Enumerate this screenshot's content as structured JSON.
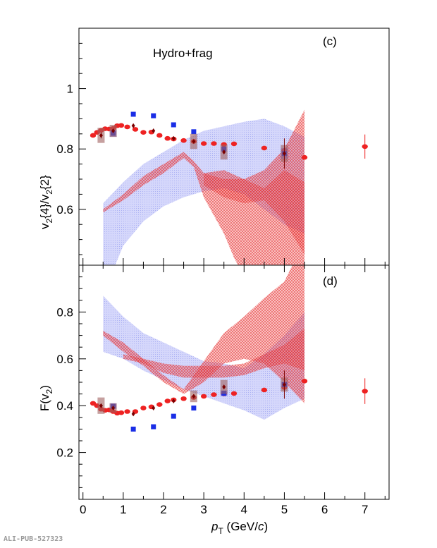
{
  "watermark": "ALI-PUB-527323",
  "colors": {
    "red": "#ee2222",
    "blue": "#1a2ee6",
    "dark": "#7a0000",
    "red_band": "#ee4444",
    "blue_band": "#6670ee",
    "box": "#a0605f"
  },
  "chart_data": [
    {
      "type": "scatter",
      "panel_label": "(c)",
      "annotation": "Hydro+frag",
      "title": "",
      "xlabel": "",
      "ylabel": "v2{4}/v2{2}",
      "ylabel_parts": {
        "v": "v",
        "sub": "2",
        "a": "{4}/v",
        "sub2": "2",
        "b": "{2}"
      },
      "xlim": [
        -0.1,
        7.6
      ],
      "ylim": [
        0.415,
        1.2
      ],
      "yticks": [
        0.6,
        0.8,
        1
      ],
      "ytick_labels": [
        "0.6",
        "0.8",
        "1"
      ],
      "series": [
        {
          "kind": "red_points",
          "x": [
            0.25,
            0.35,
            0.45,
            0.55,
            0.65,
            0.75,
            0.85,
            0.95,
            1.1,
            1.3,
            1.5,
            1.7,
            1.9,
            2.1,
            2.25,
            2.5,
            2.75,
            3.0,
            3.25,
            3.5,
            3.75,
            4.5,
            5.0,
            5.5,
            7.0
          ],
          "values": [
            0.845,
            0.855,
            0.862,
            0.867,
            0.866,
            0.868,
            0.877,
            0.878,
            0.873,
            0.865,
            0.855,
            0.856,
            0.845,
            0.835,
            0.833,
            0.828,
            0.825,
            0.818,
            0.818,
            0.815,
            0.817,
            0.803,
            0.795,
            0.772,
            0.808
          ],
          "err": [
            0,
            0,
            0,
            0,
            0,
            0,
            0,
            0,
            0,
            0,
            0,
            0,
            0,
            0,
            0,
            0,
            0,
            0,
            0,
            0,
            0,
            0,
            0,
            0,
            0.04
          ]
        },
        {
          "kind": "blue_squares",
          "x": [
            0.75,
            1.25,
            1.75,
            2.25,
            2.75,
            3.5,
            5.0
          ],
          "values": [
            0.852,
            0.915,
            0.91,
            0.88,
            0.857,
            0.8,
            0.785
          ],
          "box": [
            0.012,
            0,
            0,
            0,
            0,
            0,
            0.018
          ]
        },
        {
          "kind": "dark_diamonds",
          "x": [
            0.45,
            0.75,
            1.25,
            1.75,
            2.25,
            2.75,
            3.5,
            5.0
          ],
          "values": [
            0.845,
            0.86,
            0.877,
            0.86,
            0.835,
            0.825,
            0.79,
            0.785
          ],
          "box": [
            0.025,
            0.02,
            0,
            0,
            0,
            0.025,
            0.025,
            0.028
          ],
          "err": [
            0.01,
            0,
            0,
            0,
            0,
            0,
            0,
            0.05
          ]
        }
      ],
      "bands": [
        {
          "kind": "blue",
          "upper": [
            [
              0.5,
              0.62
            ],
            [
              1.0,
              0.69
            ],
            [
              1.5,
              0.75
            ],
            [
              2.0,
              0.79
            ],
            [
              2.5,
              0.83
            ],
            [
              3.0,
              0.86
            ],
            [
              3.5,
              0.875
            ],
            [
              4.0,
              0.89
            ],
            [
              4.5,
              0.9
            ],
            [
              5.0,
              0.875
            ],
            [
              5.5,
              0.84
            ]
          ],
          "lower": [
            [
              0.5,
              0.415
            ],
            [
              0.8,
              0.415
            ],
            [
              1.0,
              0.48
            ],
            [
              1.5,
              0.56
            ],
            [
              2.0,
              0.61
            ],
            [
              2.5,
              0.64
            ],
            [
              3.0,
              0.66
            ],
            [
              3.5,
              0.67
            ],
            [
              4.0,
              0.65
            ],
            [
              4.5,
              0.6
            ],
            [
              5.0,
              0.55
            ],
            [
              5.5,
              0.52
            ]
          ]
        },
        {
          "kind": "red",
          "upper": [
            [
              0.5,
              0.6
            ],
            [
              1.0,
              0.65
            ],
            [
              1.5,
              0.71
            ],
            [
              2.0,
              0.75
            ],
            [
              2.5,
              0.79
            ],
            [
              2.75,
              0.76
            ],
            [
              3.0,
              0.72
            ],
            [
              3.5,
              0.7
            ],
            [
              4.0,
              0.7
            ],
            [
              4.5,
              0.73
            ],
            [
              5.0,
              0.8
            ],
            [
              5.5,
              0.93
            ]
          ],
          "lower": [
            [
              0.5,
              0.59
            ],
            [
              1.0,
              0.63
            ],
            [
              1.5,
              0.68
            ],
            [
              2.0,
              0.72
            ],
            [
              2.5,
              0.77
            ],
            [
              2.75,
              0.74
            ],
            [
              3.0,
              0.64
            ],
            [
              3.5,
              0.52
            ],
            [
              3.75,
              0.44
            ],
            [
              3.85,
              0.415
            ],
            [
              5.5,
              0.415
            ]
          ]
        },
        {
          "kind": "red",
          "upper": [
            [
              3.0,
              0.72
            ],
            [
              3.5,
              0.73
            ],
            [
              4.0,
              0.7
            ],
            [
              4.5,
              0.67
            ],
            [
              5.0,
              0.73
            ],
            [
              5.5,
              0.69
            ]
          ],
          "lower": [
            [
              3.0,
              0.68
            ],
            [
              3.5,
              0.64
            ],
            [
              4.0,
              0.62
            ],
            [
              4.5,
              0.63
            ],
            [
              5.0,
              0.56
            ],
            [
              5.5,
              0.45
            ]
          ]
        }
      ]
    },
    {
      "type": "scatter",
      "panel_label": "(d)",
      "title": "",
      "xlabel": "pT (GeV/c)",
      "xlabel_parts": {
        "p": "p",
        "sub": "T",
        "a": " (GeV/",
        "c": "c",
        "b": ")"
      },
      "ylabel": "F(v2)",
      "ylabel_parts": {
        "a": "F(v",
        "sub": "2",
        "b": ")"
      },
      "xlim": [
        -0.1,
        7.6
      ],
      "ylim": [
        0.0,
        1.0
      ],
      "xticks": [
        0,
        1,
        2,
        3,
        4,
        5,
        6,
        7
      ],
      "xtick_labels": [
        "0",
        "1",
        "2",
        "3",
        "4",
        "5",
        "6",
        "7"
      ],
      "yticks": [
        0.2,
        0.4,
        0.6,
        0.8
      ],
      "ytick_labels": [
        "0.2",
        "0.4",
        "0.6",
        "0.8"
      ],
      "series": [
        {
          "kind": "red_points",
          "x": [
            0.25,
            0.35,
            0.45,
            0.55,
            0.65,
            0.75,
            0.85,
            0.95,
            1.1,
            1.3,
            1.5,
            1.7,
            1.9,
            2.1,
            2.25,
            2.5,
            2.75,
            3.0,
            3.25,
            3.5,
            3.75,
            4.5,
            5.0,
            5.5,
            7.0
          ],
          "values": [
            0.41,
            0.4,
            0.385,
            0.38,
            0.382,
            0.375,
            0.368,
            0.37,
            0.375,
            0.375,
            0.39,
            0.395,
            0.405,
            0.42,
            0.425,
            0.43,
            0.435,
            0.44,
            0.447,
            0.45,
            0.452,
            0.467,
            0.478,
            0.505,
            0.462
          ],
          "err": [
            0,
            0,
            0,
            0,
            0,
            0,
            0,
            0,
            0,
            0,
            0,
            0,
            0,
            0,
            0,
            0,
            0,
            0,
            0,
            0,
            0,
            0,
            0,
            0,
            0.055
          ]
        },
        {
          "kind": "blue_squares",
          "x": [
            0.75,
            1.25,
            1.75,
            2.25,
            2.75,
            3.5,
            5.0
          ],
          "values": [
            0.398,
            0.3,
            0.31,
            0.355,
            0.39,
            0.453,
            0.49
          ],
          "box": [
            0.012,
            0,
            0,
            0,
            0,
            0.012,
            0.012
          ]
        },
        {
          "kind": "dark_diamonds",
          "x": [
            0.45,
            0.75,
            1.25,
            1.75,
            2.25,
            2.75,
            3.5,
            5.0
          ],
          "values": [
            0.4,
            0.39,
            0.365,
            0.39,
            0.42,
            0.44,
            0.48,
            0.49
          ],
          "box": [
            0.035,
            0.02,
            0,
            0,
            0,
            0.025,
            0.03,
            0.03
          ],
          "err": [
            0,
            0,
            0,
            0,
            0,
            0,
            0,
            0.06
          ]
        }
      ],
      "bands": [
        {
          "kind": "blue",
          "upper": [
            [
              0.5,
              0.87
            ],
            [
              1.0,
              0.78
            ],
            [
              1.5,
              0.71
            ],
            [
              2.0,
              0.67
            ],
            [
              2.5,
              0.63
            ],
            [
              3.0,
              0.59
            ],
            [
              3.5,
              0.58
            ],
            [
              4.0,
              0.56
            ],
            [
              4.5,
              0.62
            ],
            [
              5.0,
              0.7
            ],
            [
              5.5,
              0.8
            ]
          ],
          "lower": [
            [
              0.5,
              0.63
            ],
            [
              1.0,
              0.6
            ],
            [
              1.5,
              0.55
            ],
            [
              2.0,
              0.51
            ],
            [
              2.5,
              0.47
            ],
            [
              3.0,
              0.44
            ],
            [
              3.5,
              0.41
            ],
            [
              4.0,
              0.38
            ],
            [
              4.5,
              0.34
            ],
            [
              5.0,
              0.39
            ],
            [
              5.5,
              0.43
            ]
          ]
        },
        {
          "kind": "red",
          "upper": [
            [
              0.5,
              0.72
            ],
            [
              1.0,
              0.67
            ],
            [
              1.5,
              0.6
            ],
            [
              2.0,
              0.53
            ],
            [
              2.5,
              0.47
            ],
            [
              3.0,
              0.59
            ],
            [
              3.5,
              0.71
            ],
            [
              4.0,
              0.78
            ],
            [
              4.5,
              0.86
            ],
            [
              5.0,
              0.93
            ],
            [
              5.2,
              1.0
            ],
            [
              5.5,
              1.0
            ]
          ],
          "lower": [
            [
              0.5,
              0.7
            ],
            [
              1.0,
              0.63
            ],
            [
              1.5,
              0.57
            ],
            [
              2.0,
              0.5
            ],
            [
              2.5,
              0.45
            ],
            [
              3.0,
              0.5
            ],
            [
              3.5,
              0.58
            ],
            [
              4.0,
              0.6
            ],
            [
              4.5,
              0.58
            ],
            [
              5.0,
              0.5
            ],
            [
              5.5,
              0.41
            ]
          ]
        },
        {
          "kind": "red",
          "upper": [
            [
              1.0,
              0.62
            ],
            [
              1.5,
              0.6
            ],
            [
              2.0,
              0.58
            ],
            [
              2.5,
              0.57
            ],
            [
              3.0,
              0.57
            ],
            [
              3.5,
              0.57
            ],
            [
              4.0,
              0.58
            ],
            [
              4.5,
              0.62
            ],
            [
              5.0,
              0.66
            ],
            [
              5.5,
              0.73
            ]
          ],
          "lower": [
            [
              1.0,
              0.6
            ],
            [
              1.5,
              0.58
            ],
            [
              2.0,
              0.54
            ],
            [
              2.5,
              0.52
            ],
            [
              3.0,
              0.52
            ],
            [
              3.5,
              0.52
            ],
            [
              4.0,
              0.53
            ],
            [
              4.5,
              0.56
            ],
            [
              5.0,
              0.58
            ],
            [
              5.5,
              0.55
            ]
          ]
        }
      ]
    }
  ]
}
